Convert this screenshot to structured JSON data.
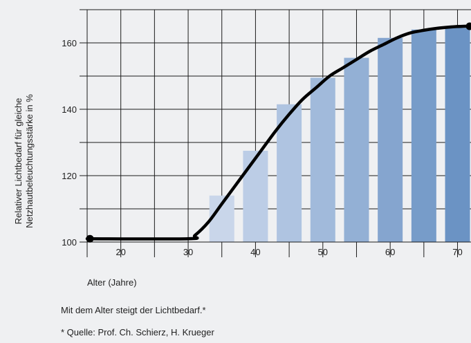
{
  "chart_data": {
    "type": "bar",
    "ylabel_lines": [
      "Relativer Lichtbedarf für gleiche",
      "Netzhautbeleuchtungsstärke in %"
    ],
    "xlabel": "Alter (Jahre)",
    "x_ticks": [
      20,
      30,
      40,
      50,
      60,
      70
    ],
    "y_ticks": [
      100,
      120,
      140,
      160
    ],
    "xlim": [
      15,
      72
    ],
    "ylim": [
      100,
      170
    ],
    "grid": true,
    "bars": {
      "x": [
        35,
        40,
        45,
        50,
        55,
        60,
        65,
        70
      ],
      "values": [
        114,
        127.5,
        141.5,
        149.5,
        155.5,
        161.5,
        164,
        164.5
      ],
      "colors": [
        "#c9d6ea",
        "#bccde6",
        "#afc4e1",
        "#a1badb",
        "#93b0d5",
        "#85a5cf",
        "#779cc9",
        "#6b93c4"
      ]
    },
    "curve": {
      "x": [
        15,
        30,
        31,
        33,
        35,
        37,
        39,
        41,
        43,
        45,
        47,
        49,
        51,
        53,
        55,
        57,
        59,
        61,
        63,
        65,
        67,
        69,
        71,
        72
      ],
      "y": [
        101,
        101,
        102,
        106,
        111.5,
        117,
        122.5,
        128,
        133.5,
        138.5,
        143,
        146.5,
        150,
        152.5,
        155,
        157.5,
        159.5,
        161.5,
        163,
        163.8,
        164.4,
        164.8,
        165,
        165
      ],
      "color": "#000000"
    }
  },
  "caption": {
    "main": "Mit dem Alter steigt der Lichtbedarf.*",
    "source": "* Quelle: Prof. Ch. Schierz, H. Krueger"
  }
}
